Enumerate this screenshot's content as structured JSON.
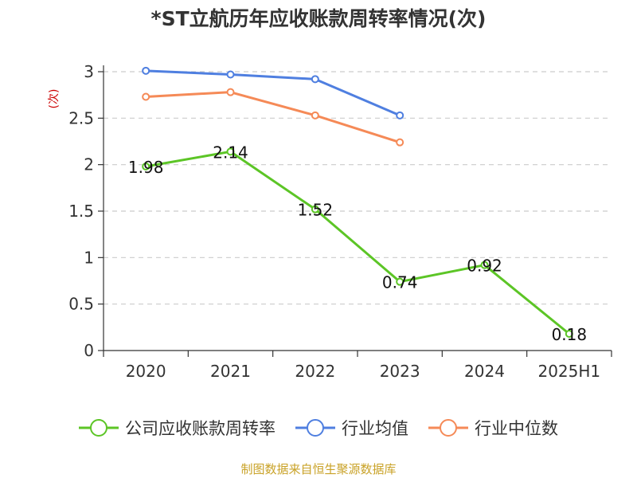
{
  "title": "*ST立航历年应收账款周转率情况(次)",
  "source": "制图数据来自恒生聚源数据库",
  "chart_data": {
    "type": "line",
    "title": "*ST立航历年应收账款周转率情况(次)",
    "ylabel": "(次)",
    "xlabel": "",
    "categories": [
      "2020",
      "2021",
      "2022",
      "2023",
      "2024",
      "2025H1"
    ],
    "ylim": [
      0,
      3
    ],
    "yticks": [
      "0",
      "0.5",
      "1",
      "1.5",
      "2",
      "2.5",
      "3"
    ],
    "grid": true,
    "legend_position": "bottom",
    "series": [
      {
        "name": "公司应收账款周转率",
        "color": "#5cc526",
        "values": [
          1.98,
          2.14,
          1.52,
          0.74,
          0.92,
          0.18
        ],
        "labels": [
          "1.98",
          "2.14",
          "1.52",
          "0.74",
          "0.92",
          "0.18"
        ],
        "show_labels": true
      },
      {
        "name": "行业均值",
        "color": "#4f7fe0",
        "values": [
          3.01,
          2.97,
          2.92,
          2.53,
          null,
          null
        ],
        "show_labels": false
      },
      {
        "name": "行业中位数",
        "color": "#f58a57",
        "values": [
          2.73,
          2.78,
          2.53,
          2.24,
          null,
          null
        ],
        "show_labels": false
      }
    ]
  }
}
